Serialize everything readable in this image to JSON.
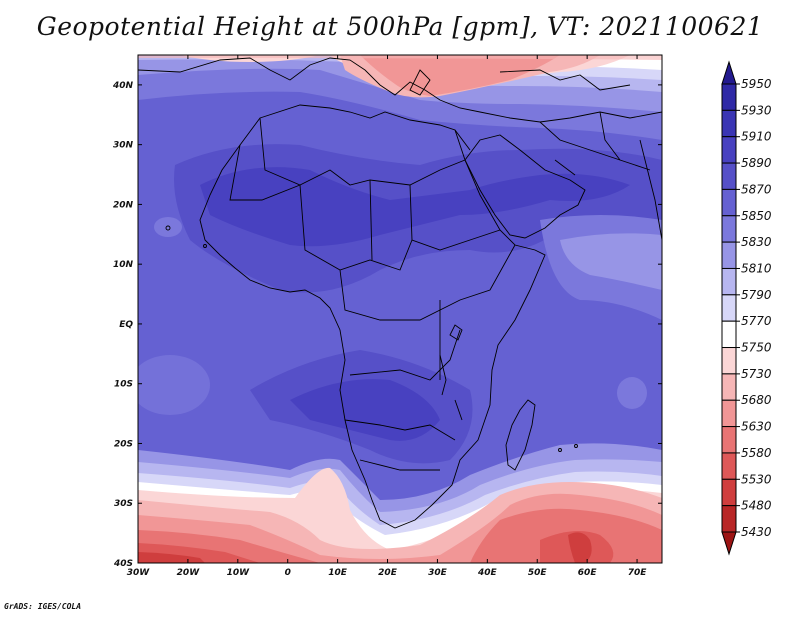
{
  "title": "Geopotential Height at 500hPa [gpm], VT: 2021100621",
  "credit": "GrADS: IGES/COLA",
  "lat_labels": [
    "40N",
    "30N",
    "20N",
    "10N",
    "EQ",
    "10S",
    "20S",
    "30S",
    "40S"
  ],
  "lon_labels": [
    "30W",
    "20W",
    "10W",
    "0",
    "10E",
    "20E",
    "30E",
    "40E",
    "50E",
    "60E",
    "70E"
  ],
  "colorbar": {
    "levels": [
      "5950",
      "5930",
      "5910",
      "5890",
      "5870",
      "5850",
      "5830",
      "5810",
      "5790",
      "5770",
      "5750",
      "5730",
      "5680",
      "5630",
      "5580",
      "5530",
      "5480",
      "5430"
    ],
    "colors": [
      "#231a8f",
      "#2f29a6",
      "#3a35b4",
      "#4841c0",
      "#5650c8",
      "#6561d2",
      "#7b78dc",
      "#9795e6",
      "#b7b6f0",
      "#d7d7f8",
      "#ffffff",
      "#fbd6d6",
      "#f6b6b6",
      "#f19696",
      "#e87474",
      "#de5858",
      "#cf3e3e",
      "#b82626",
      "#9c1414"
    ]
  },
  "map": {
    "lon_range": [
      -30,
      75
    ],
    "lat_range": [
      -40,
      45
    ]
  }
}
